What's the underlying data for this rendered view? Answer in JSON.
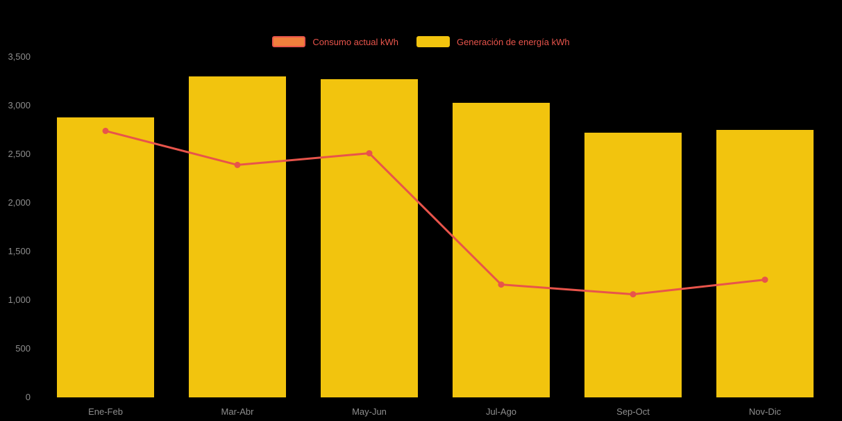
{
  "chart_data": {
    "type": "bar",
    "subtype": "bar-line-combo",
    "title": "",
    "xlabel": "",
    "ylabel": "",
    "categories": [
      "Ene-Feb",
      "Mar-Abr",
      "May-Jun",
      "Jul-Ago",
      "Sep-Oct",
      "Nov-Dic"
    ],
    "series": [
      {
        "name": "Consumo actual kWh",
        "type": "line",
        "color": "#e8544b",
        "legend_fill": "#f07f3c",
        "legend_border": "#e8544b",
        "values": [
          2740,
          2390,
          2510,
          1160,
          1060,
          1210
        ]
      },
      {
        "name": "Generación de energía kWh",
        "type": "bar",
        "color": "#f2c40e",
        "legend_fill": "#f2c40e",
        "legend_border": "#f2c40e",
        "values": [
          2880,
          3300,
          3270,
          3030,
          2720,
          2750
        ]
      }
    ],
    "ylim": [
      0,
      3500
    ],
    "yticks": [
      0,
      500,
      1000,
      1500,
      2000,
      2500,
      3000,
      3500
    ],
    "ytick_labels": [
      "0",
      "500",
      "1,000",
      "1,500",
      "2,000",
      "2,500",
      "3,000",
      "3,500"
    ],
    "grid": false,
    "legend_position": "top-center",
    "colors": {
      "background": "#000000",
      "axis_text": "#8e8e8e",
      "legend_text": "#e8544b"
    }
  }
}
